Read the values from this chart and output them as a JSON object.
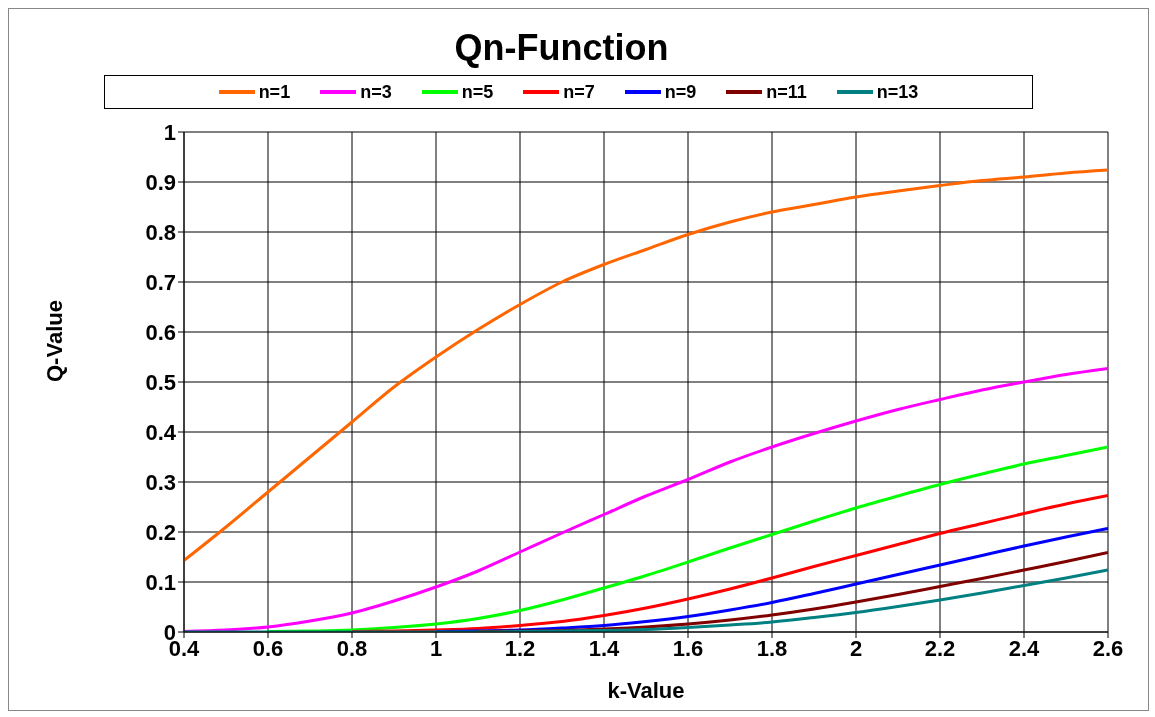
{
  "chart_data": {
    "type": "line",
    "title": "Qn-Function",
    "xlabel": "k-Value",
    "ylabel": "Q-Value",
    "x": [
      0.4,
      0.5,
      0.6,
      0.7,
      0.8,
      0.9,
      1.0,
      1.1,
      1.2,
      1.3,
      1.4,
      1.5,
      1.6,
      1.7,
      1.8,
      1.9,
      2.0,
      2.1,
      2.2,
      2.3,
      2.4,
      2.5,
      2.6
    ],
    "series": [
      {
        "name": "n=1",
        "color": "#ff6600",
        "values": [
          0.143,
          0.21,
          0.28,
          0.35,
          0.42,
          0.49,
          0.55,
          0.605,
          0.655,
          0.7,
          0.735,
          0.765,
          0.795,
          0.82,
          0.84,
          0.855,
          0.87,
          0.882,
          0.893,
          0.903,
          0.91,
          0.918,
          0.924
        ]
      },
      {
        "name": "n=3",
        "color": "#ff00ff",
        "values": [
          0.001,
          0.004,
          0.01,
          0.022,
          0.038,
          0.062,
          0.09,
          0.122,
          0.16,
          0.198,
          0.235,
          0.272,
          0.305,
          0.34,
          0.37,
          0.397,
          0.422,
          0.445,
          0.465,
          0.484,
          0.5,
          0.515,
          0.527
        ]
      },
      {
        "name": "n=5",
        "color": "#00ff00",
        "values": [
          null,
          null,
          0.001,
          0.002,
          0.004,
          0.009,
          0.016,
          0.027,
          0.043,
          0.064,
          0.088,
          0.113,
          0.14,
          0.168,
          0.195,
          0.222,
          0.248,
          0.272,
          0.295,
          0.316,
          0.336,
          0.353,
          0.37
        ]
      },
      {
        "name": "n=7",
        "color": "#ff0000",
        "values": [
          null,
          null,
          null,
          null,
          0.001,
          0.002,
          0.004,
          0.007,
          0.013,
          0.021,
          0.033,
          0.048,
          0.066,
          0.086,
          0.108,
          0.131,
          0.153,
          0.175,
          0.197,
          0.217,
          0.237,
          0.256,
          0.273
        ]
      },
      {
        "name": "n=9",
        "color": "#0000ff",
        "values": [
          null,
          null,
          null,
          null,
          null,
          null,
          0.001,
          0.002,
          0.004,
          0.008,
          0.013,
          0.021,
          0.031,
          0.044,
          0.059,
          0.077,
          0.096,
          0.115,
          0.134,
          0.153,
          0.172,
          0.19,
          0.207
        ]
      },
      {
        "name": "n=11",
        "color": "#800000",
        "values": [
          null,
          null,
          null,
          null,
          null,
          null,
          null,
          0.001,
          0.002,
          0.003,
          0.006,
          0.01,
          0.016,
          0.024,
          0.034,
          0.046,
          0.06,
          0.075,
          0.091,
          0.107,
          0.124,
          0.141,
          0.159
        ]
      },
      {
        "name": "n=13",
        "color": "#008080",
        "values": [
          0,
          0,
          0,
          0,
          0,
          0,
          0,
          0,
          0.001,
          0.002,
          0.003,
          0.005,
          0.009,
          0.014,
          0.02,
          0.029,
          0.039,
          0.051,
          0.064,
          0.078,
          0.093,
          0.108,
          0.124
        ]
      }
    ],
    "xlim": [
      0.4,
      2.6
    ],
    "xticks": [
      0.4,
      0.6,
      0.8,
      1,
      1.2,
      1.4,
      1.6,
      1.8,
      2,
      2.2,
      2.4,
      2.6
    ],
    "ylim": [
      0,
      1
    ],
    "yticks": [
      0,
      0.1,
      0.2,
      0.3,
      0.4,
      0.5,
      0.6,
      0.7,
      0.8,
      0.9,
      1
    ],
    "grid": true,
    "legend": "top",
    "marker": "none",
    "line_style": "solid"
  }
}
